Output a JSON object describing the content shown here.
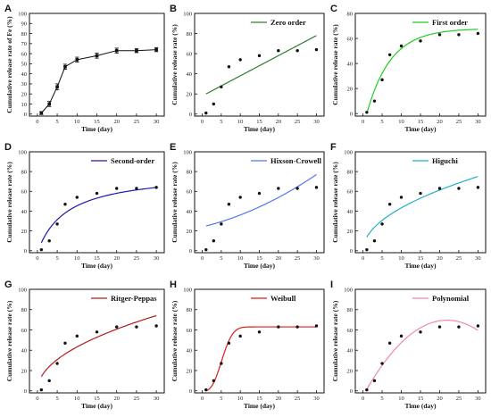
{
  "chart_data": [
    {
      "panel": "A",
      "type": "line",
      "xlabel": "Time (day)",
      "ylabel": "Cumulative release rate of Fe (%)",
      "xlim": [
        -2,
        32
      ],
      "ylim": [
        -2,
        100
      ],
      "xticks": [
        0,
        5,
        10,
        15,
        20,
        25,
        30
      ],
      "yticks": [
        0,
        10,
        20,
        30,
        40,
        50,
        60,
        70,
        80,
        90,
        100
      ],
      "x": [
        1,
        3,
        5,
        7,
        10,
        15,
        20,
        25,
        30
      ],
      "values": [
        1,
        10,
        27,
        47,
        54,
        58,
        63,
        63,
        64
      ],
      "errors": [
        1.5,
        2.5,
        3,
        2.5,
        2.5,
        2.5,
        2.5,
        2,
        2
      ],
      "legend": null
    },
    {
      "panel": "B",
      "type": "scatter+fit",
      "legend": "Zero order",
      "fit_color": "#2e7d32",
      "xlabel": "Time (day)",
      "ylabel": "Cumulative release rate (%)",
      "xlim": [
        -2,
        32
      ],
      "ylim": [
        -2,
        100
      ],
      "xticks": [
        0,
        5,
        10,
        15,
        20,
        25,
        30
      ],
      "yticks": [
        0,
        20,
        40,
        60,
        80,
        100
      ],
      "x": [
        1,
        3,
        5,
        7,
        10,
        15,
        20,
        25,
        30
      ],
      "values": [
        1,
        10,
        27,
        47,
        54,
        58,
        63,
        63,
        64
      ],
      "fit": {
        "model": "linear",
        "y_at_1": 20,
        "y_at_30": 78
      }
    },
    {
      "panel": "C",
      "type": "scatter+fit",
      "legend": "First order",
      "fit_color": "#22cc22",
      "xlabel": "Time (day)",
      "ylabel": "Cumulative release rate (%)",
      "xlim": [
        -2,
        32
      ],
      "ylim": [
        -2,
        80
      ],
      "xticks": [
        0,
        5,
        10,
        15,
        20,
        25,
        30
      ],
      "yticks": [
        0,
        20,
        40,
        60,
        80
      ],
      "x": [
        1,
        3,
        5,
        7,
        10,
        15,
        20,
        25,
        30
      ],
      "values": [
        1,
        10,
        27,
        47,
        54,
        58,
        63,
        63,
        64
      ],
      "fit": {
        "model": "first-order",
        "a": 68,
        "k": 0.16,
        "t0": 1
      }
    },
    {
      "panel": "D",
      "type": "scatter+fit",
      "legend": "Second-order",
      "fit_color": "#1a1aaa",
      "xlabel": "Time (day)",
      "ylabel": "Cumulative release rate (%)",
      "xlim": [
        -2,
        32
      ],
      "ylim": [
        -2,
        100
      ],
      "xticks": [
        0,
        5,
        10,
        15,
        20,
        25,
        30
      ],
      "yticks": [
        0,
        20,
        40,
        60,
        80,
        100
      ],
      "x": [
        1,
        3,
        5,
        7,
        10,
        15,
        20,
        25,
        30
      ],
      "values": [
        1,
        10,
        27,
        47,
        54,
        58,
        63,
        63,
        64
      ],
      "fit": {
        "model": "second-order",
        "a": 80,
        "b": 0.12,
        "start": 8
      }
    },
    {
      "panel": "E",
      "type": "scatter+fit",
      "legend": "Hixson-Crowell",
      "fit_color": "#5577ee",
      "xlabel": "Time (day)",
      "ylabel": "Cumulative release rate (%)",
      "xlim": [
        -2,
        32
      ],
      "ylim": [
        -2,
        100
      ],
      "xticks": [
        0,
        5,
        10,
        15,
        20,
        25,
        30
      ],
      "yticks": [
        0,
        20,
        40,
        60,
        80,
        100
      ],
      "x": [
        1,
        3,
        5,
        7,
        10,
        15,
        20,
        25,
        30
      ],
      "values": [
        1,
        10,
        27,
        47,
        54,
        58,
        63,
        63,
        64
      ],
      "fit": {
        "model": "hixson-crowell",
        "y_at_1": 25,
        "y_at_30": 77
      }
    },
    {
      "panel": "F",
      "type": "scatter+fit",
      "legend": "Higuchi",
      "fit_color": "#22b0c8",
      "xlabel": "Time (day)",
      "ylabel": "Cumulative release rate (%)",
      "xlim": [
        -2,
        32
      ],
      "ylim": [
        -2,
        100
      ],
      "xticks": [
        0,
        5,
        10,
        15,
        20,
        25,
        30
      ],
      "yticks": [
        0,
        20,
        40,
        60,
        80,
        100
      ],
      "x": [
        1,
        3,
        5,
        7,
        10,
        15,
        20,
        25,
        30
      ],
      "values": [
        1,
        10,
        27,
        47,
        54,
        58,
        63,
        63,
        64
      ],
      "fit": {
        "model": "higuchi",
        "k": 13.7
      }
    },
    {
      "panel": "G",
      "type": "scatter+fit",
      "legend": "Ritger-Peppas",
      "fit_color": "#b31b1b",
      "xlabel": "Time (day)",
      "ylabel": "Cumulative release rate (%)",
      "xlim": [
        -2,
        32
      ],
      "ylim": [
        -2,
        100
      ],
      "xticks": [
        0,
        5,
        10,
        15,
        20,
        25,
        30
      ],
      "yticks": [
        0,
        20,
        40,
        60,
        80,
        100
      ],
      "x": [
        1,
        3,
        5,
        7,
        10,
        15,
        20,
        25,
        30
      ],
      "values": [
        1,
        10,
        27,
        47,
        54,
        58,
        63,
        63,
        64
      ],
      "fit": {
        "model": "power",
        "k": 14,
        "n": 0.49
      }
    },
    {
      "panel": "H",
      "type": "scatter+fit",
      "legend": "Weibull",
      "fit_color": "#e11a1a",
      "xlabel": "Time (day)",
      "ylabel": "Cumulative release rate (%)",
      "xlim": [
        -2,
        32
      ],
      "ylim": [
        -2,
        100
      ],
      "xticks": [
        0,
        5,
        10,
        15,
        20,
        25,
        30
      ],
      "yticks": [
        0,
        20,
        40,
        60,
        80,
        100
      ],
      "x": [
        1,
        3,
        5,
        7,
        10,
        15,
        20,
        25,
        30
      ],
      "values": [
        1,
        10,
        27,
        47,
        54,
        58,
        63,
        63,
        64
      ],
      "fit": {
        "model": "weibull",
        "a": 63,
        "tau": 5.6,
        "beta": 2.6
      }
    },
    {
      "panel": "I",
      "type": "scatter+fit",
      "legend": "Polynomial",
      "fit_color": "#f08aa8",
      "xlabel": "Time (day)",
      "ylabel": "Cumulative release rate (%)",
      "xlim": [
        -2,
        32
      ],
      "ylim": [
        -2,
        100
      ],
      "xticks": [
        0,
        5,
        10,
        15,
        20,
        25,
        30
      ],
      "yticks": [
        0,
        20,
        40,
        60,
        80,
        100
      ],
      "x": [
        1,
        3,
        5,
        7,
        10,
        15,
        20,
        25,
        30
      ],
      "values": [
        1,
        10,
        27,
        47,
        54,
        58,
        63,
        63,
        64
      ],
      "fit": {
        "model": "quadratic",
        "c0": -5,
        "c1": 6.8,
        "c2": -0.155
      }
    }
  ]
}
